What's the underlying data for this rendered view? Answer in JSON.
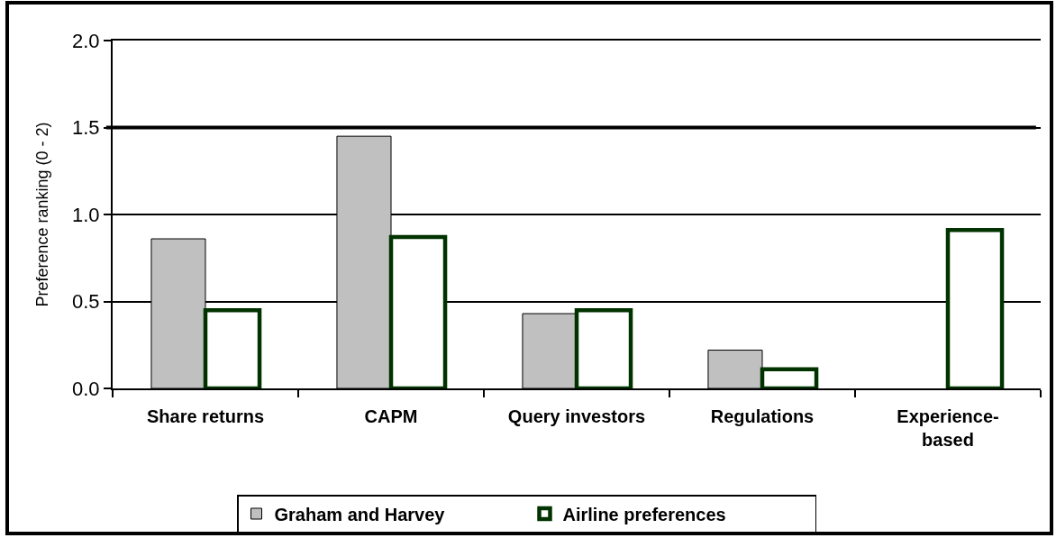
{
  "chart_data": {
    "type": "bar",
    "ylabel": "Preference ranking (0 - 2)",
    "categories": [
      "Share returns",
      "CAPM",
      "Query investors",
      "Regulations",
      "Experience-based"
    ],
    "series": [
      {
        "name": "Graham and Harvey",
        "color": "#c0c0c0",
        "values": [
          0.86,
          1.45,
          0.43,
          0.22,
          null
        ]
      },
      {
        "name": "Airline preferences",
        "color": "#003300",
        "values": [
          0.45,
          0.87,
          0.45,
          0.11,
          0.91
        ]
      }
    ],
    "ylim": [
      0,
      2
    ],
    "yticks": [
      {
        "value": 0,
        "label": "0.0"
      },
      {
        "value": 0.5,
        "label": "0.5"
      },
      {
        "value": 1,
        "label": "1.0"
      },
      {
        "value": 1.5,
        "label": "1.5"
      },
      {
        "value": 2,
        "label": "2.0"
      }
    ],
    "grid": "y",
    "legend": "bottom",
    "ref_lines": [
      {
        "axis": "y",
        "value": 1.5
      }
    ]
  }
}
